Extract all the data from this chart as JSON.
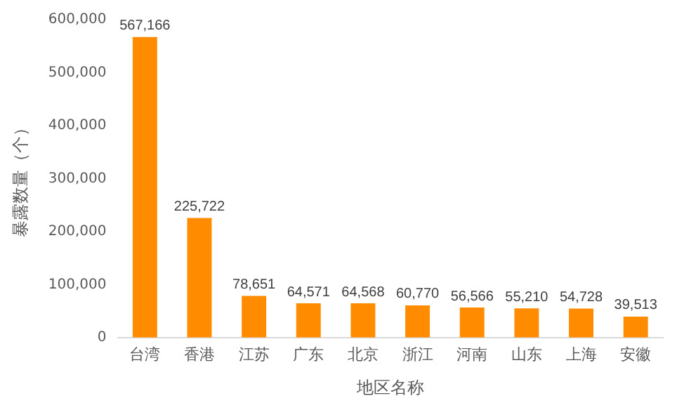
{
  "chart_data": {
    "type": "bar",
    "xlabel": "地区名称",
    "ylabel": "暴露数量（个）",
    "categories": [
      "台湾",
      "香港",
      "江苏",
      "广东",
      "北京",
      "浙江",
      "河南",
      "山东",
      "上海",
      "安徽"
    ],
    "values": [
      567166,
      225722,
      78651,
      64571,
      64568,
      60770,
      56566,
      55210,
      54728,
      39513
    ],
    "value_labels": [
      "567,166",
      "225,722",
      "78,651",
      "64,571",
      "64,568",
      "60,770",
      "56,566",
      "55,210",
      "54,728",
      "39,513"
    ],
    "color": "#ff8c00",
    "ylim": [
      0,
      600000
    ],
    "yticks": [
      {
        "value": 0,
        "label": "0"
      },
      {
        "value": 100000,
        "label": "100,000"
      },
      {
        "value": 200000,
        "label": "200,000"
      },
      {
        "value": 300000,
        "label": "300,000"
      },
      {
        "value": 400000,
        "label": "400,000"
      },
      {
        "value": 500000,
        "label": "500,000"
      },
      {
        "value": 600000,
        "label": "600,000"
      }
    ],
    "grid": false,
    "legend": false
  }
}
